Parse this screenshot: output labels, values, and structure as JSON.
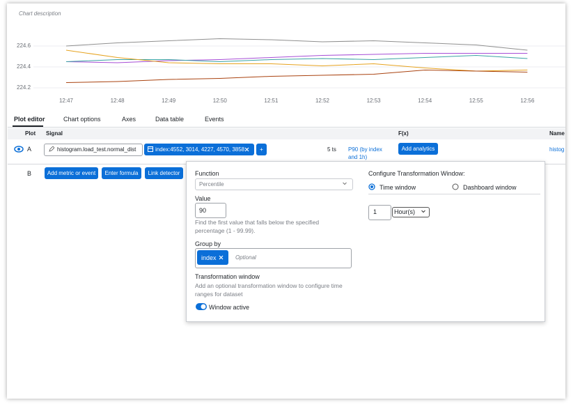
{
  "chart_data": {
    "type": "line",
    "title": "Chart description",
    "categories": [
      "12:47",
      "12:48",
      "12:49",
      "12:50",
      "12:51",
      "12:52",
      "12:53",
      "12:54",
      "12:55",
      "12:56"
    ],
    "series": [
      {
        "color": "#8f8f8f",
        "values": [
          224.6,
          224.63,
          224.65,
          224.67,
          224.66,
          224.64,
          224.65,
          224.63,
          224.61,
          224.56
        ]
      },
      {
        "color": "#a64dd6",
        "values": [
          224.45,
          224.44,
          224.46,
          224.47,
          224.49,
          224.51,
          224.52,
          224.53,
          224.53,
          224.53
        ]
      },
      {
        "color": "#3aa3a3",
        "values": [
          224.45,
          224.47,
          224.47,
          224.45,
          224.47,
          224.48,
          224.47,
          224.49,
          224.51,
          224.48
        ]
      },
      {
        "color": "#e6a21e",
        "values": [
          224.56,
          224.49,
          224.44,
          224.43,
          224.43,
          224.41,
          224.43,
          224.39,
          224.36,
          224.37
        ]
      },
      {
        "color": "#a9420f",
        "values": [
          224.25,
          224.26,
          224.28,
          224.29,
          224.31,
          224.32,
          224.33,
          224.37,
          224.36,
          224.35
        ]
      }
    ],
    "ylim": [
      224.14,
      224.72
    ],
    "yticks": [
      224.2,
      224.4,
      224.6
    ],
    "grid": true
  },
  "tabs": [
    "Plot editor",
    "Chart options",
    "Axes",
    "Data table",
    "Events"
  ],
  "table": {
    "headers": [
      "Plot",
      "Signal",
      "F(x)",
      "Name"
    ],
    "row_a": {
      "label": "A",
      "signal": "histogram.load_test.normal_dist",
      "filter": "index:4552, 3014, 4227, 4570, 3858",
      "add": "+",
      "count": "5 ts",
      "function": "P90 (by index and 1h)",
      "analytics_button": "Add analytics",
      "name": "histog"
    },
    "row_b": {
      "label": "B",
      "buttons": [
        "Add metric or event",
        "Enter formula",
        "Link detector"
      ]
    }
  },
  "popup": {
    "function_label": "Function",
    "function_value": "Percentile",
    "value_label": "Value",
    "value": 90,
    "value_help": "Find the first value that falls below the specified percentage (1 - 99.99).",
    "group_by_label": "Group by",
    "group_by_chip": "index",
    "group_by_placeholder": "Optional",
    "transformation_label": "Transformation window",
    "transformation_help": "Add an optional transformation window to configure time ranges for dataset",
    "toggle_label": "Window active",
    "window_title": "Configure Transformation Window:",
    "radio_options": [
      "Time window",
      "Dashboard window"
    ],
    "window_amount": 1,
    "window_unit": "Hour(s)"
  }
}
